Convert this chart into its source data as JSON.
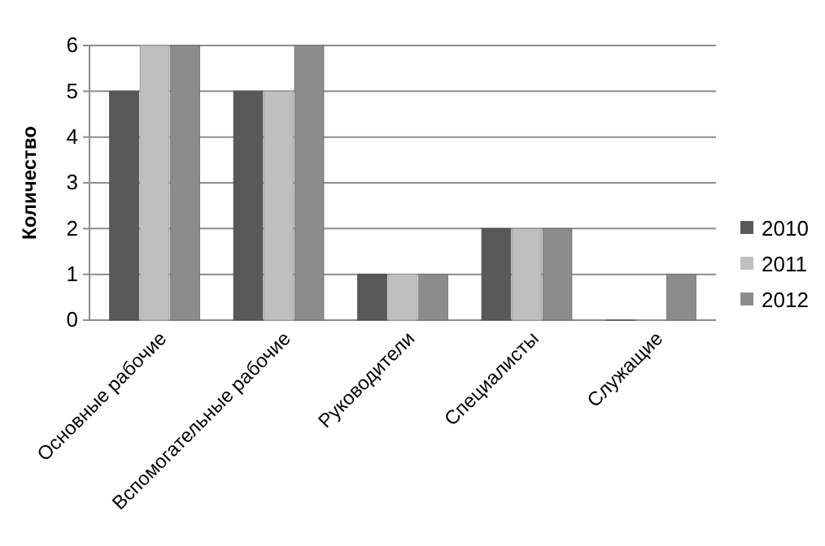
{
  "chart_data": {
    "type": "bar",
    "ylabel": "Количество",
    "categories": [
      "Основные рабочие",
      "Вспомогательные рабочие",
      "Руководители",
      "Специалисты",
      "Служащие"
    ],
    "series": [
      {
        "name": "2010",
        "color": "#595959",
        "values": [
          5,
          5,
          1,
          2,
          0
        ]
      },
      {
        "name": "2011",
        "color": "#bfbfbf",
        "values": [
          6,
          5,
          1,
          2,
          0
        ]
      },
      {
        "name": "2012",
        "color": "#8c8c8c",
        "values": [
          6,
          6,
          1,
          2,
          1
        ]
      }
    ],
    "ylim": [
      0,
      6
    ],
    "yticks": [
      0,
      1,
      2,
      3,
      4,
      5,
      6
    ],
    "grid": "y",
    "legend": "right"
  }
}
